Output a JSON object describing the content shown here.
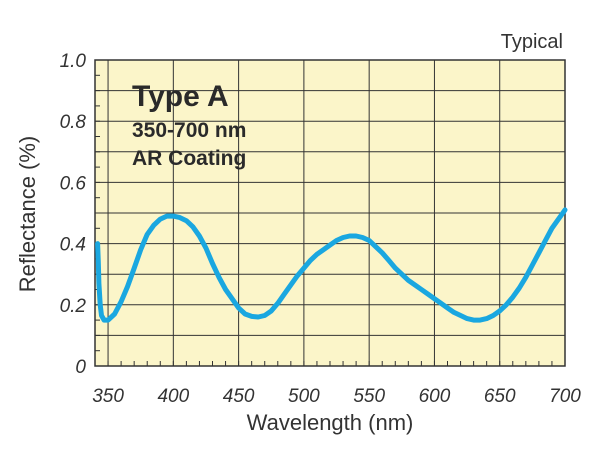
{
  "chart_data": {
    "type": "line",
    "xlabel": "Wavelength (nm)",
    "ylabel": "Reflectance (%)",
    "note": "Typical",
    "annotation": {
      "title": "Type A",
      "line1": "350-700 nm",
      "line2": "AR Coating"
    },
    "xlim": [
      340,
      700
    ],
    "ylim": [
      0,
      1.0
    ],
    "x_ticks": [
      "350",
      "400",
      "450",
      "500",
      "550",
      "600",
      "650",
      "700"
    ],
    "x_tick_values": [
      350,
      400,
      450,
      500,
      550,
      600,
      650,
      700
    ],
    "y_ticks": [
      "0",
      "0.2",
      "0.4",
      "0.6",
      "0.8",
      "1.0"
    ],
    "y_tick_values": [
      0,
      0.2,
      0.4,
      0.6,
      0.8,
      1.0
    ],
    "grid": true,
    "colors": {
      "plot_background": "#FBF5C9",
      "grid": "#333333",
      "series": "#1AA7E0"
    },
    "series": [
      {
        "x": [
          342,
          342.5,
          343,
          344,
          345,
          347,
          350,
          355,
          360,
          365,
          370,
          375,
          380,
          385,
          390,
          395,
          400,
          405,
          410,
          415,
          420,
          425,
          430,
          435,
          440,
          445,
          450,
          455,
          460,
          465,
          470,
          475,
          480,
          485,
          490,
          495,
          500,
          505,
          510,
          515,
          520,
          525,
          530,
          535,
          540,
          545,
          550,
          555,
          560,
          565,
          570,
          575,
          580,
          585,
          590,
          595,
          600,
          605,
          610,
          615,
          620,
          625,
          630,
          635,
          640,
          645,
          650,
          655,
          660,
          665,
          670,
          675,
          680,
          685,
          690,
          695,
          700
        ],
        "values": [
          0.4,
          0.34,
          0.27,
          0.2,
          0.165,
          0.15,
          0.15,
          0.17,
          0.21,
          0.26,
          0.32,
          0.38,
          0.43,
          0.46,
          0.48,
          0.49,
          0.49,
          0.485,
          0.475,
          0.455,
          0.425,
          0.385,
          0.335,
          0.29,
          0.25,
          0.22,
          0.19,
          0.17,
          0.162,
          0.16,
          0.165,
          0.18,
          0.205,
          0.235,
          0.265,
          0.295,
          0.32,
          0.345,
          0.365,
          0.38,
          0.395,
          0.41,
          0.42,
          0.425,
          0.425,
          0.42,
          0.41,
          0.39,
          0.37,
          0.345,
          0.32,
          0.3,
          0.28,
          0.265,
          0.25,
          0.235,
          0.22,
          0.205,
          0.19,
          0.175,
          0.165,
          0.155,
          0.15,
          0.15,
          0.155,
          0.165,
          0.18,
          0.2,
          0.225,
          0.255,
          0.29,
          0.33,
          0.37,
          0.41,
          0.45,
          0.48,
          0.51
        ]
      }
    ]
  }
}
